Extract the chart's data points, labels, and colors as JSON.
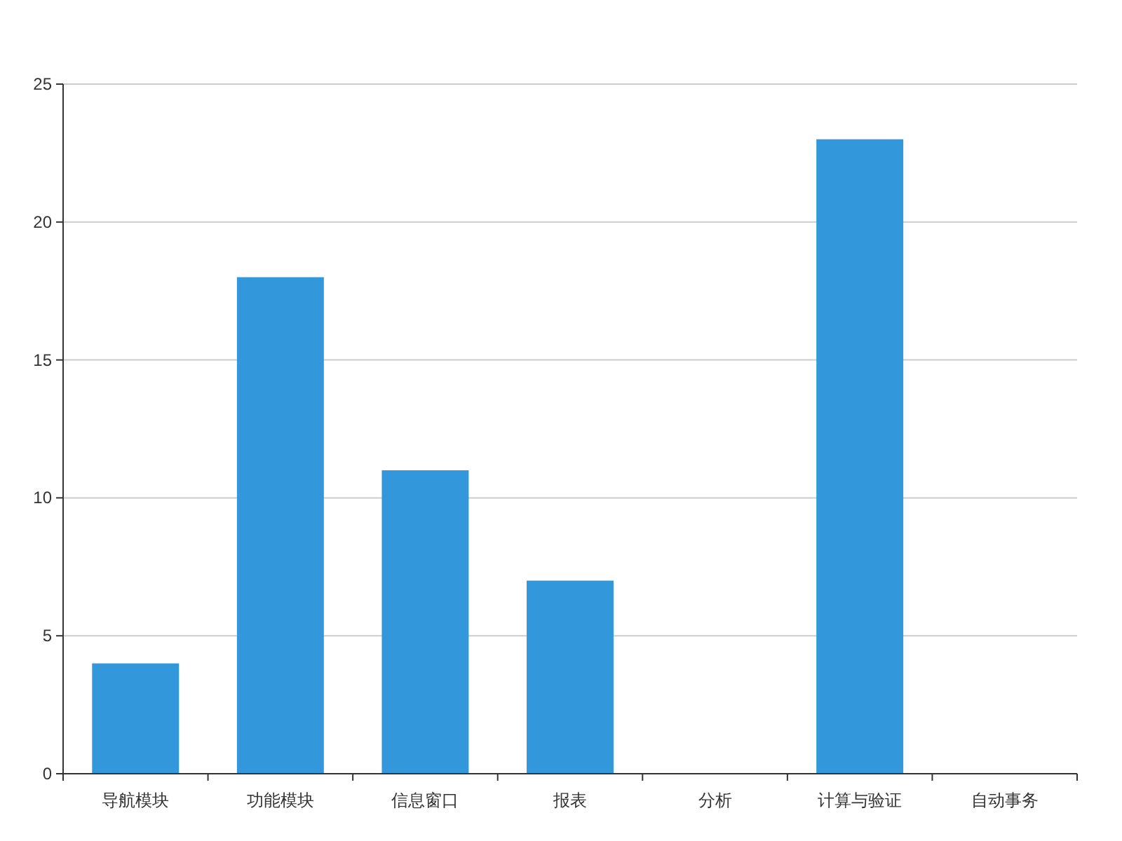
{
  "chart_data": {
    "type": "bar",
    "categories": [
      "导航模块",
      "功能模块",
      "信息窗口",
      "报表",
      "分析",
      "计算与验证",
      "自动事务"
    ],
    "values": [
      4,
      18,
      11,
      7,
      0,
      23,
      0
    ],
    "color": "#3398db",
    "ylim": [
      0,
      25
    ],
    "yticks": [
      0,
      5,
      10,
      15,
      20,
      25
    ],
    "grid": "y"
  }
}
